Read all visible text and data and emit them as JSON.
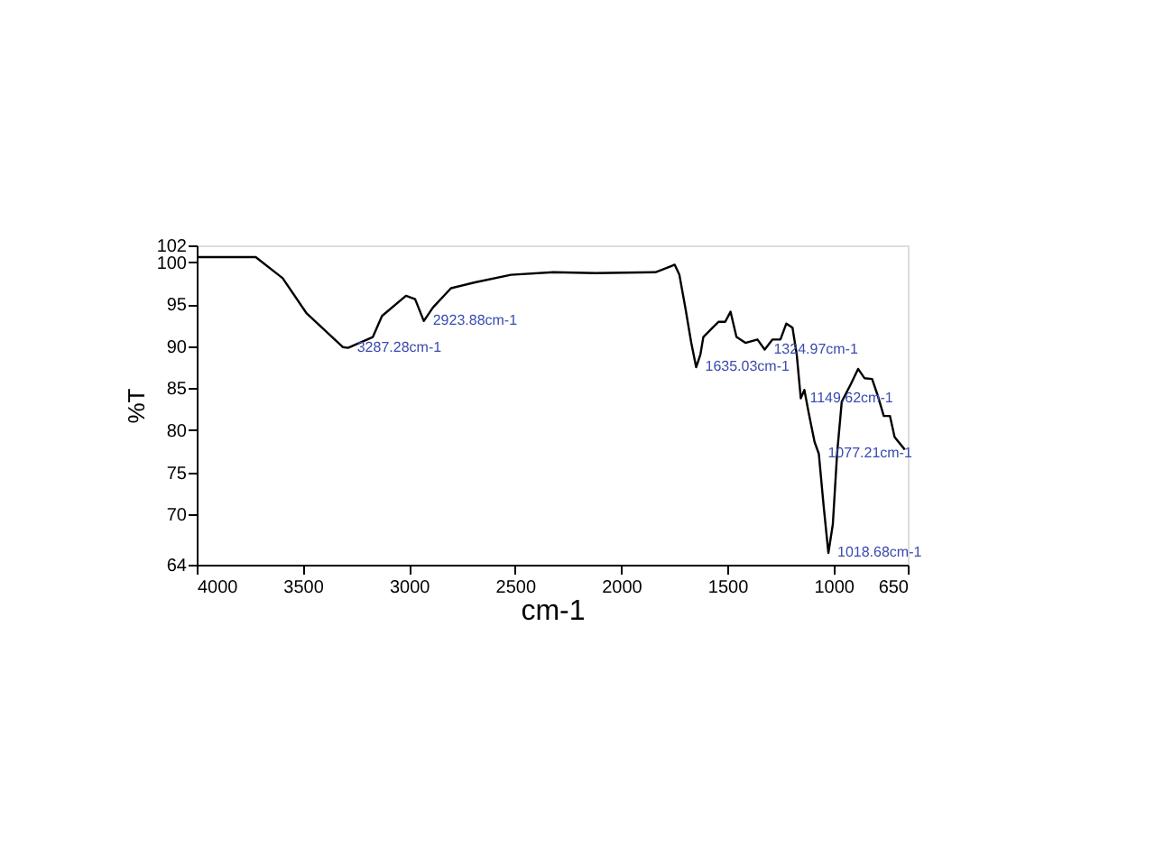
{
  "chart_data": {
    "type": "line",
    "xlabel": "cm-1",
    "ylabel": "%T",
    "xlim": [
      4000,
      650
    ],
    "ylim": [
      64,
      102
    ],
    "xticks": [
      4000,
      3500,
      3000,
      2500,
      2000,
      1500,
      1000,
      650
    ],
    "yticks": [
      64,
      70,
      75,
      80,
      85,
      90,
      95,
      100,
      102
    ],
    "grid": false,
    "marker": "none",
    "line_style": "solid",
    "series": [
      {
        "color": "#000000",
        "x": [
          4000,
          3722,
          3595,
          3482,
          3312,
          3287,
          3170,
          3127,
          3014,
          2971,
          2930,
          2887,
          2802,
          2689,
          2519,
          2320,
          2122,
          1839,
          1768,
          1748,
          1726,
          1698,
          1670,
          1647,
          1627,
          1613,
          1570,
          1542,
          1510,
          1485,
          1457,
          1415,
          1358,
          1324,
          1287,
          1250,
          1222,
          1193,
          1173,
          1154,
          1137,
          1117,
          1089,
          1069,
          1046,
          1024,
          1003,
          983,
          961,
          918,
          884,
          854,
          818,
          791,
          763,
          734,
          712,
          664
        ],
        "values": [
          100.6,
          100.6,
          98.1,
          93.9,
          89.9,
          89.8,
          91.1,
          93.6,
          96.0,
          95.6,
          93.0,
          94.6,
          96.9,
          97.6,
          98.5,
          98.8,
          98.7,
          98.8,
          99.5,
          99.7,
          98.5,
          94.6,
          90.4,
          87.5,
          89.0,
          91.1,
          92.2,
          92.9,
          92.9,
          94.1,
          91.1,
          90.4,
          90.8,
          89.6,
          90.8,
          90.8,
          92.7,
          92.2,
          89.0,
          83.8,
          84.8,
          82.1,
          78.6,
          77.2,
          70.9,
          65.4,
          68.8,
          77.2,
          83.4,
          85.5,
          87.3,
          86.2,
          86.1,
          84.1,
          81.7,
          81.7,
          79.2,
          77.7
        ]
      }
    ],
    "annotations": [
      {
        "text": "3287.28cm-1",
        "x": 3287,
        "y": 89.8
      },
      {
        "text": "2923.88cm-1",
        "x": 2930,
        "y": 93.0
      },
      {
        "text": "1635.03cm-1",
        "x": 1647,
        "y": 87.5
      },
      {
        "text": "1324.97cm-1",
        "x": 1324,
        "y": 89.6
      },
      {
        "text": "1149.62cm-1",
        "x": 1154,
        "y": 83.8
      },
      {
        "text": "1077.21cm-1",
        "x": 1069,
        "y": 77.2
      },
      {
        "text": "1018.68cm-1",
        "x": 1024,
        "y": 65.4
      }
    ]
  }
}
